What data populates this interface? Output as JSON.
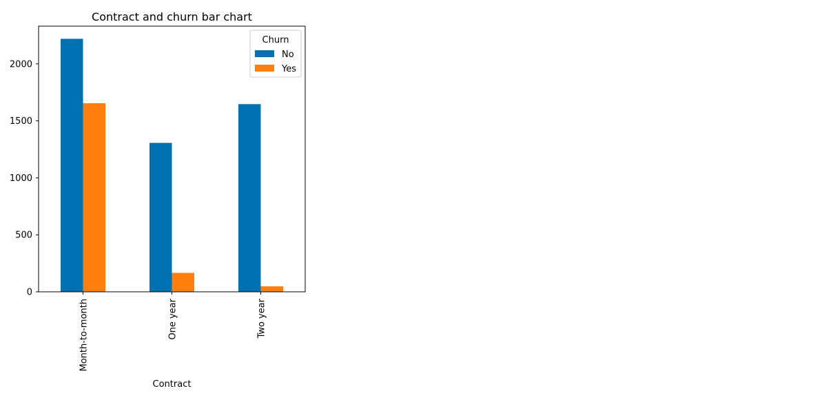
{
  "chart_data": {
    "type": "bar",
    "title": "Contract and churn bar chart",
    "xlabel": "Contract",
    "ylabel": "",
    "categories": [
      "Month-to-month",
      "One year",
      "Two year"
    ],
    "series": [
      {
        "name": "No",
        "color": "#0072b2",
        "values": [
          2220,
          1307,
          1647
        ]
      },
      {
        "name": "Yes",
        "color": "#ff7f0e",
        "values": [
          1655,
          166,
          48
        ]
      }
    ],
    "ylim": [
      0,
      2331
    ],
    "yticks": [
      0,
      500,
      1000,
      1500,
      2000
    ],
    "legend": {
      "title": "Churn",
      "placement": "top-right"
    },
    "grid": false
  }
}
